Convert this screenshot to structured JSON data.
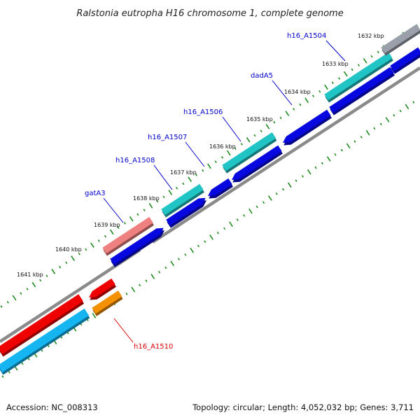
{
  "title": "Ralstonia eutropha H16 chromosome 1, complete genome",
  "colors": {
    "forward_cds": "#21c4c4",
    "reverse_cds": "#0707e0",
    "rna": "#ee8080",
    "highlight_red": "#ee0000",
    "highlight_orange": "#f59000",
    "highlight_cyan": "#14b5f0",
    "backbone": "#8a8a8a",
    "tick": "#1c8a1c",
    "label_blue": "#0000cc",
    "label_red": "#dd0000"
  },
  "tick_labels": [
    "1632 kbp",
    "1633 kbp",
    "1634 kbp",
    "1635 kbp",
    "1636 kbp",
    "1637 kbp",
    "1638 kbp",
    "1639 kbp",
    "1640 kbp",
    "1641 kbp"
  ],
  "gene_labels": [
    "h16_A1504",
    "dadA5",
    "h16_A1506",
    "h16_A1507",
    "h16_A1508",
    "gatA3",
    "h16_A1510"
  ],
  "footer": {
    "accession": "Accession: NC_008313",
    "stats": "Topology: circular; Length: 4,052,032 bp; Genes: 3,711"
  }
}
